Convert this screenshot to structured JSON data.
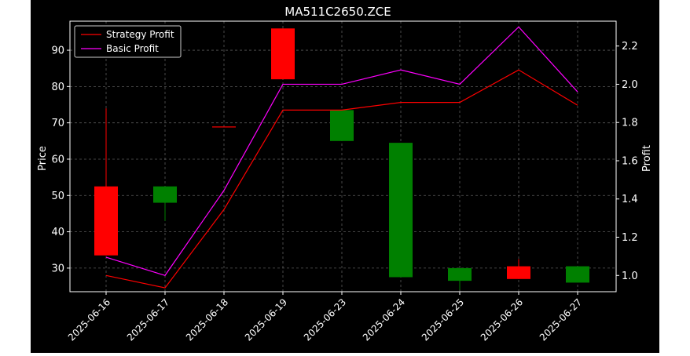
{
  "chart_data": {
    "type": "candlestick",
    "title": "MA511C2650.ZCE",
    "xlabel": "",
    "ylabel_left": "Price",
    "ylabel_right": "Profit",
    "categories": [
      "2025-06-16",
      "2025-06-17",
      "2025-06-18",
      "2025-06-19",
      "2025-06-23",
      "2025-06-24",
      "2025-06-25",
      "2025-06-26",
      "2025-06-27"
    ],
    "ohlc": [
      {
        "open": 33.5,
        "high": 74.0,
        "low": 33.5,
        "close": 52.5
      },
      {
        "open": 52.5,
        "high": 52.5,
        "low": 43.0,
        "close": 48.0
      },
      {
        "open": 69.0,
        "high": 69.0,
        "low": 69.0,
        "close": 69.0
      },
      {
        "open": 82.0,
        "high": 96.0,
        "low": 82.0,
        "close": 96.0
      },
      {
        "open": 73.5,
        "high": 73.5,
        "low": 65.0,
        "close": 65.0
      },
      {
        "open": 64.5,
        "high": 64.5,
        "low": 27.5,
        "close": 27.5
      },
      {
        "open": 30.0,
        "high": 30.0,
        "low": 24.0,
        "close": 26.5
      },
      {
        "open": 27.0,
        "high": 32.5,
        "low": 27.0,
        "close": 30.5
      },
      {
        "open": 30.5,
        "high": 30.5,
        "low": 26.0,
        "close": 26.0
      }
    ],
    "series": [
      {
        "name": "Strategy Profit",
        "axis": "right",
        "values": [
          1.0,
          0.935,
          1.345,
          1.865,
          1.865,
          1.905,
          1.905,
          2.075,
          1.89
        ]
      },
      {
        "name": "Basic Profit",
        "axis": "right",
        "values": [
          1.095,
          1.0,
          1.445,
          2.0,
          2.0,
          2.075,
          2.0,
          2.3,
          1.96
        ]
      }
    ],
    "ylim_left": [
      23.5,
      98.0
    ],
    "ylim_right": [
      0.915,
      2.33
    ],
    "yticks_left": [
      30,
      40,
      50,
      60,
      70,
      80,
      90
    ],
    "yticks_right": [
      1.0,
      1.2,
      1.4,
      1.6,
      1.8,
      2.0,
      2.2
    ],
    "grid": true,
    "legend_position": "upper-left",
    "colors": {
      "background": "#000000",
      "up": "#ff0000",
      "down": "#008000",
      "strategy": "#ff0000",
      "basic": "#ff00ff",
      "grid": "#808080",
      "text": "#ffffff"
    }
  }
}
